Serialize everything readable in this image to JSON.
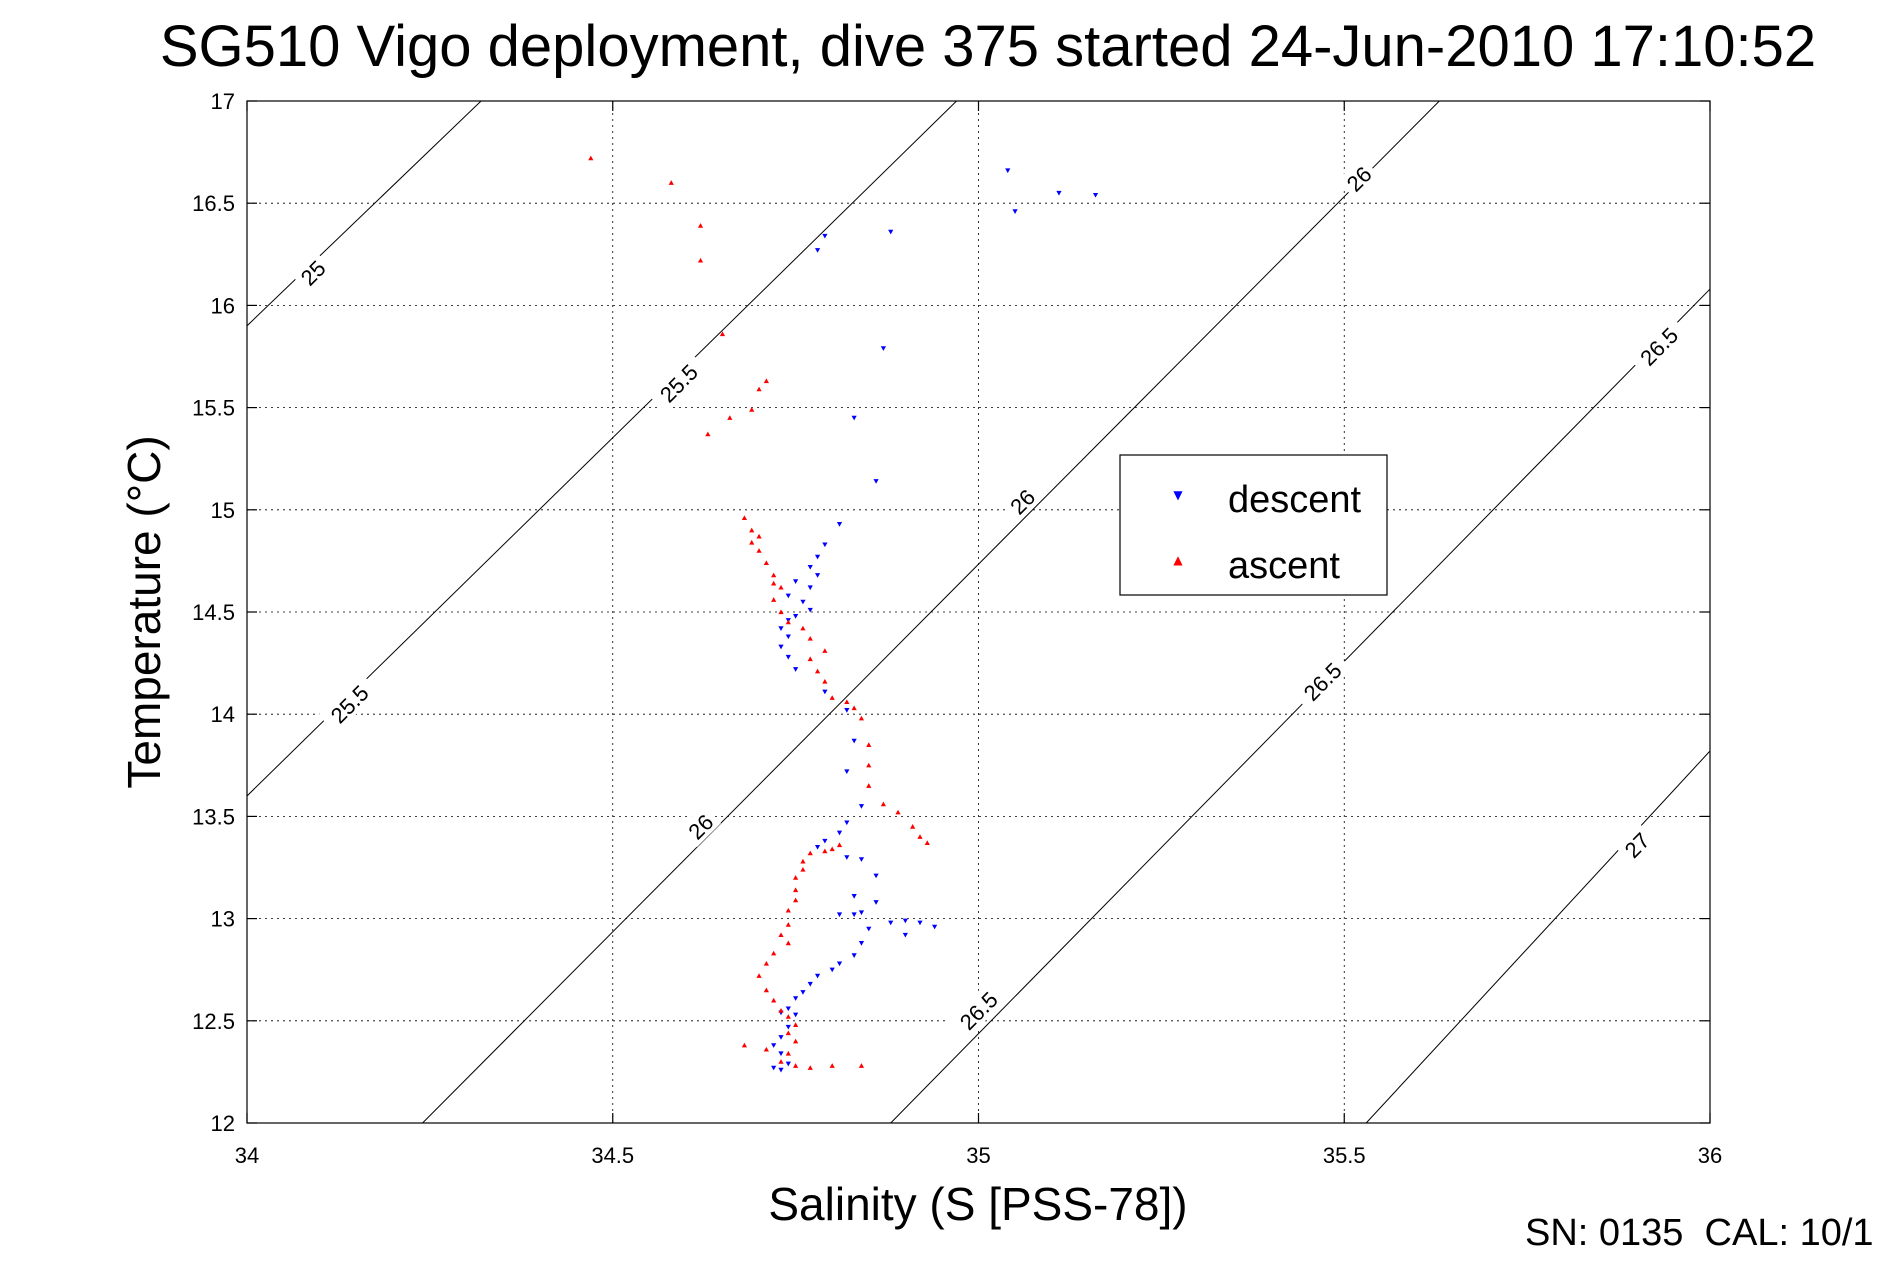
{
  "chart_data": {
    "type": "scatter",
    "title": "SG510 Vigo deployment, dive 375 started 24-Jun-2010 17:10:52",
    "xlabel": "Salinity (S [PSS-78])",
    "ylabel": "Temperature (°C)",
    "xlim": [
      34,
      36
    ],
    "ylim": [
      12,
      17
    ],
    "xticks": [
      "34",
      "34.5",
      "35",
      "35.5",
      "36"
    ],
    "yticks": [
      "12",
      "12.5",
      "13",
      "13.5",
      "14",
      "14.5",
      "15",
      "15.5",
      "16",
      "16.5",
      "17"
    ],
    "grid": true,
    "legend_position": "center-right",
    "footer": "SN: 0135  CAL: 10/1",
    "contours": [
      {
        "level": "25",
        "points": [
          [
            34.0,
            15.9
          ],
          [
            34.32,
            17.0
          ]
        ]
      },
      {
        "level": "25.5",
        "points": [
          [
            34.0,
            13.6
          ],
          [
            34.97,
            17.0
          ]
        ]
      },
      {
        "level": "26",
        "points": [
          [
            34.24,
            12.0
          ],
          [
            35.63,
            17.0
          ]
        ]
      },
      {
        "level": "26.5",
        "points": [
          [
            34.88,
            12.0
          ],
          [
            36.0,
            16.08
          ]
        ]
      },
      {
        "level": "27",
        "points": [
          [
            35.53,
            12.0
          ],
          [
            36.0,
            13.82
          ]
        ]
      }
    ],
    "contour_labels": [
      {
        "text": "25",
        "x": 34.09,
        "y": 16.16,
        "angle": -45
      },
      {
        "text": "25.5",
        "x": 34.59,
        "y": 15.62,
        "angle": -45
      },
      {
        "text": "25.5",
        "x": 34.14,
        "y": 14.05,
        "angle": -45
      },
      {
        "text": "26",
        "x": 34.62,
        "y": 13.45,
        "angle": -45
      },
      {
        "text": "26",
        "x": 35.06,
        "y": 15.04,
        "angle": -45
      },
      {
        "text": "26",
        "x": 35.52,
        "y": 16.62,
        "angle": -45
      },
      {
        "text": "26.5",
        "x": 35.0,
        "y": 12.55,
        "angle": -45
      },
      {
        "text": "26.5",
        "x": 35.47,
        "y": 14.16,
        "angle": -45
      },
      {
        "text": "26.5",
        "x": 35.93,
        "y": 15.8,
        "angle": -45
      },
      {
        "text": "27",
        "x": 35.9,
        "y": 13.36,
        "angle": -45
      }
    ],
    "series": [
      {
        "name": "descent",
        "color": "#0000ff",
        "marker": "triangle-down",
        "points": [
          [
            35.04,
            16.66
          ],
          [
            35.05,
            16.46
          ],
          [
            35.11,
            16.55
          ],
          [
            35.16,
            16.54
          ],
          [
            34.79,
            16.34
          ],
          [
            34.78,
            16.27
          ],
          [
            34.88,
            16.36
          ],
          [
            34.87,
            15.79
          ],
          [
            34.83,
            15.45
          ],
          [
            34.86,
            15.14
          ],
          [
            34.81,
            14.93
          ],
          [
            34.79,
            14.83
          ],
          [
            34.78,
            14.77
          ],
          [
            34.77,
            14.72
          ],
          [
            34.78,
            14.68
          ],
          [
            34.77,
            14.62
          ],
          [
            34.75,
            14.65
          ],
          [
            34.74,
            14.58
          ],
          [
            34.76,
            14.55
          ],
          [
            34.77,
            14.51
          ],
          [
            34.75,
            14.48
          ],
          [
            34.74,
            14.46
          ],
          [
            34.73,
            14.42
          ],
          [
            34.74,
            14.38
          ],
          [
            34.73,
            14.33
          ],
          [
            34.74,
            14.28
          ],
          [
            34.75,
            14.22
          ],
          [
            34.79,
            14.11
          ],
          [
            34.82,
            14.02
          ],
          [
            34.83,
            13.87
          ],
          [
            34.82,
            13.72
          ],
          [
            34.84,
            13.55
          ],
          [
            34.82,
            13.47
          ],
          [
            34.81,
            13.42
          ],
          [
            34.79,
            13.38
          ],
          [
            34.78,
            13.35
          ],
          [
            34.82,
            13.3
          ],
          [
            34.84,
            13.29
          ],
          [
            34.86,
            13.21
          ],
          [
            34.83,
            13.11
          ],
          [
            34.86,
            13.08
          ],
          [
            34.84,
            13.03
          ],
          [
            34.83,
            13.02
          ],
          [
            34.81,
            13.02
          ],
          [
            34.85,
            12.95
          ],
          [
            34.84,
            12.88
          ],
          [
            34.83,
            12.82
          ],
          [
            34.81,
            12.78
          ],
          [
            34.8,
            12.75
          ],
          [
            34.78,
            12.72
          ],
          [
            34.77,
            12.68
          ],
          [
            34.76,
            12.64
          ],
          [
            34.75,
            12.61
          ],
          [
            34.74,
            12.56
          ],
          [
            34.73,
            12.54
          ],
          [
            34.75,
            12.53
          ],
          [
            34.74,
            12.47
          ],
          [
            34.73,
            12.42
          ],
          [
            34.72,
            12.38
          ],
          [
            34.73,
            12.34
          ],
          [
            34.74,
            12.29
          ],
          [
            34.73,
            12.26
          ],
          [
            34.72,
            12.27
          ],
          [
            34.9,
            12.99
          ],
          [
            34.92,
            12.98
          ],
          [
            34.94,
            12.96
          ],
          [
            34.9,
            12.92
          ],
          [
            34.88,
            12.98
          ]
        ]
      },
      {
        "name": "ascent",
        "color": "#ff0000",
        "marker": "triangle-up",
        "points": [
          [
            34.47,
            16.72
          ],
          [
            34.58,
            16.6
          ],
          [
            34.62,
            16.39
          ],
          [
            34.62,
            16.22
          ],
          [
            34.65,
            15.86
          ],
          [
            34.7,
            15.59
          ],
          [
            34.71,
            15.63
          ],
          [
            34.69,
            15.49
          ],
          [
            34.66,
            15.45
          ],
          [
            34.63,
            15.37
          ],
          [
            34.68,
            14.96
          ],
          [
            34.69,
            14.9
          ],
          [
            34.7,
            14.87
          ],
          [
            34.69,
            14.84
          ],
          [
            34.7,
            14.8
          ],
          [
            34.71,
            14.74
          ],
          [
            34.72,
            14.68
          ],
          [
            34.72,
            14.64
          ],
          [
            34.73,
            14.62
          ],
          [
            34.72,
            14.56
          ],
          [
            34.73,
            14.5
          ],
          [
            34.74,
            14.45
          ],
          [
            34.76,
            14.42
          ],
          [
            34.77,
            14.37
          ],
          [
            34.79,
            14.31
          ],
          [
            34.77,
            14.27
          ],
          [
            34.78,
            14.21
          ],
          [
            34.79,
            14.16
          ],
          [
            34.8,
            14.08
          ],
          [
            34.82,
            14.06
          ],
          [
            34.83,
            14.03
          ],
          [
            34.84,
            13.98
          ],
          [
            34.85,
            13.85
          ],
          [
            34.85,
            13.75
          ],
          [
            34.85,
            13.65
          ],
          [
            34.87,
            13.56
          ],
          [
            34.89,
            13.52
          ],
          [
            34.91,
            13.45
          ],
          [
            34.92,
            13.4
          ],
          [
            34.93,
            13.37
          ],
          [
            34.81,
            13.36
          ],
          [
            34.8,
            13.34
          ],
          [
            34.79,
            13.33
          ],
          [
            34.77,
            13.32
          ],
          [
            34.76,
            13.28
          ],
          [
            34.76,
            13.24
          ],
          [
            34.75,
            13.2
          ],
          [
            34.75,
            13.14
          ],
          [
            34.75,
            13.09
          ],
          [
            34.74,
            13.04
          ],
          [
            34.74,
            12.97
          ],
          [
            34.73,
            12.92
          ],
          [
            34.74,
            12.88
          ],
          [
            34.72,
            12.83
          ],
          [
            34.71,
            12.78
          ],
          [
            34.7,
            12.72
          ],
          [
            34.71,
            12.65
          ],
          [
            34.72,
            12.6
          ],
          [
            34.73,
            12.55
          ],
          [
            34.74,
            12.52
          ],
          [
            34.75,
            12.48
          ],
          [
            34.74,
            12.44
          ],
          [
            34.75,
            12.4
          ],
          [
            34.74,
            12.34
          ],
          [
            34.73,
            12.3
          ],
          [
            34.75,
            12.28
          ],
          [
            34.77,
            12.27
          ],
          [
            34.8,
            12.28
          ],
          [
            34.84,
            12.28
          ],
          [
            34.68,
            12.38
          ],
          [
            34.71,
            12.36
          ]
        ]
      }
    ]
  }
}
